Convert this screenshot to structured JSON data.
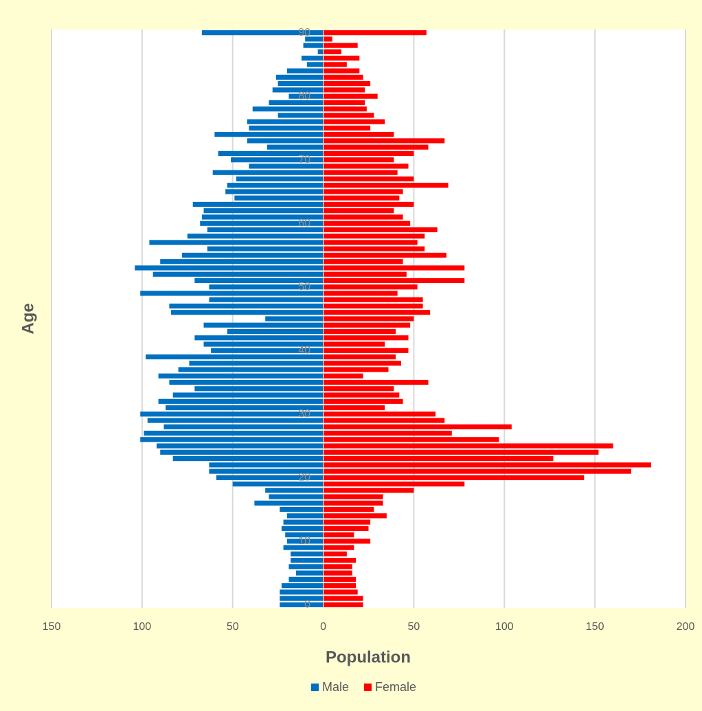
{
  "chart_data": {
    "type": "pyramid",
    "x_label": "Population",
    "y_label": "Age",
    "categories": [
      0,
      null,
      null,
      null,
      null,
      null,
      null,
      null,
      null,
      null,
      10,
      null,
      null,
      null,
      null,
      null,
      null,
      null,
      null,
      null,
      20,
      null,
      null,
      null,
      null,
      null,
      null,
      null,
      null,
      null,
      30,
      null,
      null,
      null,
      null,
      null,
      null,
      null,
      null,
      null,
      40,
      null,
      null,
      null,
      null,
      null,
      null,
      null,
      null,
      null,
      50,
      null,
      null,
      null,
      null,
      null,
      null,
      null,
      null,
      null,
      60,
      null,
      null,
      null,
      null,
      null,
      null,
      null,
      null,
      null,
      70,
      null,
      null,
      null,
      null,
      null,
      null,
      null,
      null,
      null,
      80,
      null,
      null,
      null,
      null,
      null,
      null,
      null,
      null,
      null,
      90
    ],
    "series": [
      {
        "name": "Male",
        "color": "#0070c0",
        "values": [
          -24,
          -24,
          -24,
          -23,
          -19,
          -15,
          -19,
          -18,
          -18,
          -22,
          -20,
          -21,
          -23,
          -22,
          -20,
          -24,
          -38,
          -30,
          -32,
          -50,
          -59,
          -63,
          -63,
          -83,
          -90,
          -92,
          -101,
          -99,
          -88,
          -97,
          -101,
          -87,
          -91,
          -83,
          -71,
          -85,
          -91,
          -80,
          -74,
          -98,
          -62,
          -66,
          -71,
          -53,
          -66,
          -32,
          -84,
          -85,
          -63,
          -101,
          -63,
          -71,
          -94,
          -104,
          -90,
          -78,
          -64,
          -96,
          -75,
          -64,
          -68,
          -67,
          -66,
          -72,
          -49,
          -54,
          -53,
          -48,
          -61,
          -41,
          -51,
          -58,
          -31,
          -42,
          -60,
          -41,
          -42,
          -25,
          -39,
          -30,
          -19,
          -28,
          -25,
          -26,
          -20,
          -9,
          -12,
          -3,
          -11,
          -10,
          -67
        ]
      },
      {
        "name": "Female",
        "color": "#ff0000",
        "values": [
          22,
          22,
          19,
          18,
          18,
          16,
          16,
          18,
          13,
          17,
          26,
          17,
          25,
          26,
          35,
          28,
          33,
          33,
          50,
          78,
          144,
          170,
          181,
          127,
          152,
          160,
          97,
          71,
          104,
          67,
          62,
          34,
          44,
          42,
          39,
          58,
          22,
          36,
          43,
          40,
          47,
          34,
          47,
          40,
          48,
          50,
          59,
          55,
          55,
          41,
          52,
          78,
          46,
          78,
          44,
          68,
          56,
          52,
          56,
          63,
          48,
          44,
          39,
          50,
          42,
          44,
          69,
          50,
          41,
          47,
          39,
          50,
          58,
          67,
          39,
          26,
          34,
          28,
          24,
          23,
          30,
          23,
          26,
          22,
          20,
          13,
          20,
          10,
          19,
          5,
          57
        ]
      }
    ],
    "xlim": [
      -150,
      200
    ],
    "xticks": [
      {
        "value": -150,
        "label": "150"
      },
      {
        "value": -100,
        "label": "100"
      },
      {
        "value": -50,
        "label": "50"
      },
      0,
      50,
      100,
      150,
      200
    ],
    "grid": true,
    "legend": "bottom"
  }
}
